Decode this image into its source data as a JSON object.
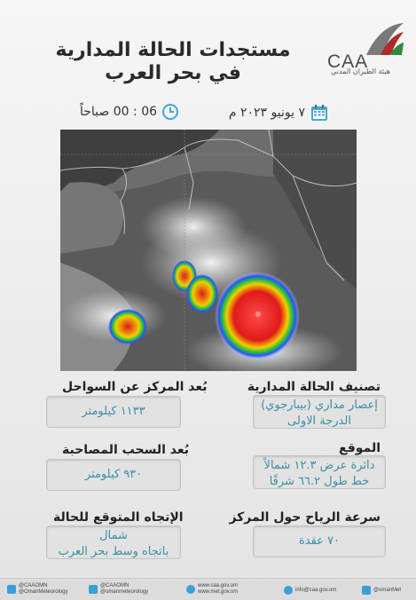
{
  "header": {
    "title_line1": "مستجدات الحالة المدارية",
    "title_line2": "في بحر العرب",
    "logo_mark": "CAA",
    "logo_sub": "هيئة الطيران المدني"
  },
  "datetime": {
    "date": "٧ يونيو ٢٠٢٣ م",
    "time": "06 : 00 صباحاً",
    "date_icon": "calendar-icon",
    "time_icon": "clock-icon"
  },
  "sections": {
    "classification": {
      "heading": "تصنيف الحالة المدارية",
      "line1": "إعصار مداري (بيبارجوي)",
      "line2": "الدرجة الاولى"
    },
    "distance_coast": {
      "heading": "بُعد المركز عن السواحل",
      "value": "١١٣٣ كيلومتر"
    },
    "location": {
      "heading": "الموقع",
      "line1": "دائرة عرض ١٢.٣ شمالاً",
      "line2": "خط طول ٦٦.٢ شرقًا"
    },
    "distance_clouds": {
      "heading": "بُعد السحب المصاحبة",
      "value": "٩٣٠ كيلومتر"
    },
    "wind_speed": {
      "heading": "سرعة الرياح حول المركز",
      "value": "٧٠ عقدة"
    },
    "direction": {
      "heading": "الإتجاه المتوقع للحالة",
      "line1": "شمال",
      "line2": "باتجاه وسط بحر العرب"
    }
  },
  "footer": {
    "twitter_line1": "@CAAOMN",
    "twitter_line2": "@OmanMeteorology",
    "instagram_line1": "@CAAOMN",
    "instagram_line2": "@omanmeteorology",
    "web_line1": "www.caa.gov.om",
    "web_line2": "www.met.gov.om",
    "email": "info@caa.gov.om",
    "facebook": "@omanMet"
  }
}
